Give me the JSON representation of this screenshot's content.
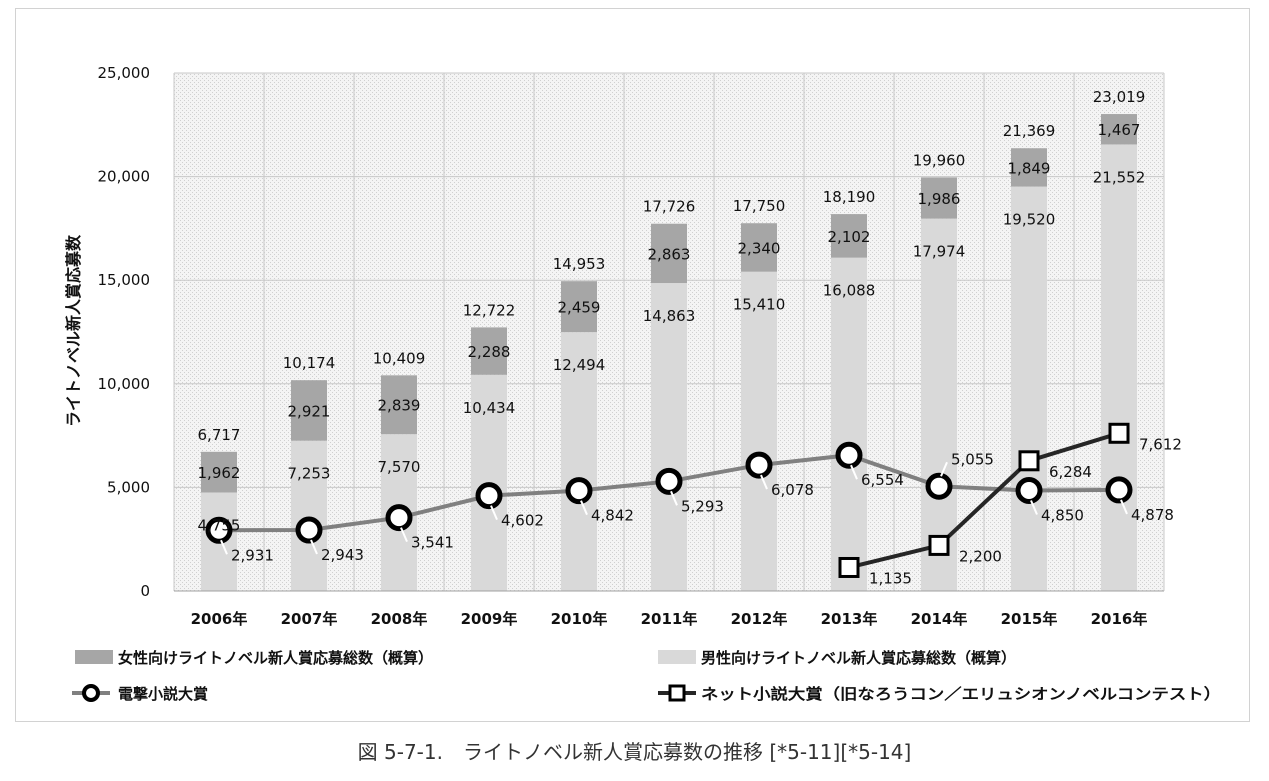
{
  "caption": "図 5-7-1.　ライトノベル新人賞応募数の推移 [*5-11][*5-14]",
  "chart_data": {
    "type": "bar",
    "stacked": true,
    "ylabel": "ライトノベル新人賞応募数",
    "xlabel": "",
    "ylim": [
      0,
      25000
    ],
    "yticks": [
      "0",
      "5,000",
      "10,000",
      "15,000",
      "20,000",
      "25,000"
    ],
    "grid": true,
    "legend_position": "bottom",
    "categories": [
      "2006年",
      "2007年",
      "2008年",
      "2009年",
      "2010年",
      "2011年",
      "2012年",
      "2013年",
      "2014年",
      "2015年",
      "2016年"
    ],
    "series": [
      {
        "name": "男性向けライトノベル新人賞応募総数（概算）",
        "kind": "bar",
        "color": "#d9d9d9",
        "values": [
          4755,
          7253,
          7570,
          10434,
          12494,
          14863,
          15410,
          16088,
          17974,
          19520,
          21552
        ],
        "labels": [
          "4,755",
          "7,253",
          "7,570",
          "10,434",
          "12,494",
          "14,863",
          "15,410",
          "16,088",
          "17,974",
          "19,520",
          "21,552"
        ]
      },
      {
        "name": "女性向けライトノベル新人賞応募総数（概算）",
        "kind": "bar",
        "color": "#a6a6a6",
        "values": [
          1962,
          2921,
          2839,
          2288,
          2459,
          2863,
          2340,
          2102,
          1986,
          1849,
          1467
        ],
        "labels": [
          "1,962",
          "2,921",
          "2,839",
          "2,288",
          "2,459",
          "2,863",
          "2,340",
          "2,102",
          "1,986",
          "1,849",
          "1,467"
        ]
      },
      {
        "name": "電撃小説大賞",
        "kind": "line",
        "color": "#808080",
        "values": [
          2931,
          2943,
          3541,
          4602,
          4842,
          5293,
          6078,
          6554,
          5055,
          4850,
          4878
        ],
        "labels": [
          "2,931",
          "2,943",
          "3,541",
          "4,602",
          "4,842",
          "5,293",
          "6,078",
          "6,554",
          "5,055",
          "4,850",
          "4,878"
        ]
      },
      {
        "name": "ネット小説大賞（旧なろうコン／エリュシオンノベルコンテスト）",
        "kind": "line",
        "color": "#262626",
        "values": [
          null,
          null,
          null,
          null,
          null,
          null,
          null,
          1135,
          2200,
          6284,
          7612
        ],
        "labels": [
          "",
          "",
          "",
          "",
          "",
          "",
          "",
          "1,135",
          "2,200",
          "6,284",
          "7,612"
        ]
      }
    ],
    "totals": [
      6717,
      10174,
      10409,
      12722,
      14953,
      17726,
      17750,
      18190,
      19960,
      21369,
      23019
    ],
    "total_labels": [
      "6,717",
      "10,174",
      "10,409",
      "12,722",
      "14,953",
      "17,726",
      "17,750",
      "18,190",
      "19,960",
      "21,369",
      "23,019"
    ]
  }
}
